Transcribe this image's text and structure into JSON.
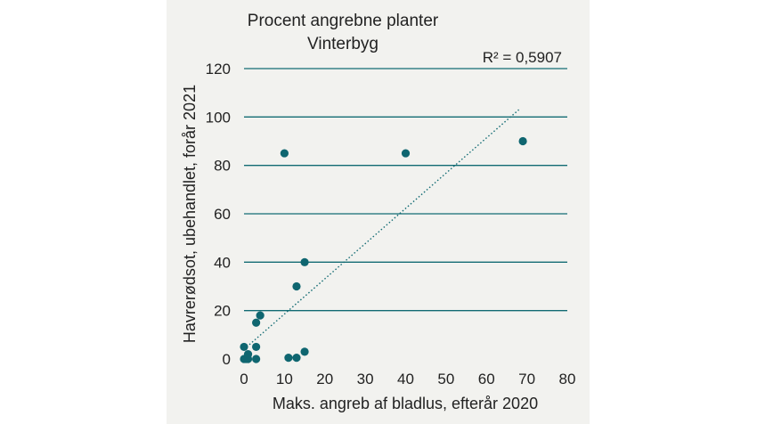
{
  "chart_data": {
    "type": "scatter",
    "title": "Procent angrebne planter",
    "subtitle": "Vinterbyg",
    "xlabel": "Maks. angreb af bladlus, efterår 2020",
    "ylabel": "Havrerødsot,  ubehandlet,  forår 2021",
    "xlim": [
      0,
      80
    ],
    "ylim": [
      0,
      120
    ],
    "x_ticks": [
      0,
      10,
      20,
      30,
      40,
      50,
      60,
      70,
      80
    ],
    "y_ticks": [
      0,
      20,
      40,
      60,
      80,
      100,
      120
    ],
    "grid": true,
    "series": [
      {
        "name": "Vinterbyg",
        "points": [
          {
            "x": 0,
            "y": 0
          },
          {
            "x": 0,
            "y": 5
          },
          {
            "x": 0.5,
            "y": 0
          },
          {
            "x": 1,
            "y": 2
          },
          {
            "x": 1,
            "y": 0
          },
          {
            "x": 3,
            "y": 5
          },
          {
            "x": 3,
            "y": 0
          },
          {
            "x": 3,
            "y": 15
          },
          {
            "x": 4,
            "y": 18
          },
          {
            "x": 10,
            "y": 85
          },
          {
            "x": 11,
            "y": 0.5
          },
          {
            "x": 13,
            "y": 30
          },
          {
            "x": 13,
            "y": 0.5
          },
          {
            "x": 15,
            "y": 40
          },
          {
            "x": 15,
            "y": 3
          },
          {
            "x": 40,
            "y": 85
          },
          {
            "x": 69,
            "y": 90
          }
        ]
      }
    ],
    "trendline": {
      "type": "linear",
      "x_start": 0,
      "y_start": 4,
      "x_end": 68,
      "y_end": 103,
      "label": "R² = 0,5907"
    },
    "colors": {
      "marker": "#0f6670",
      "grid": "#126b73",
      "trend": "#126b73"
    }
  }
}
